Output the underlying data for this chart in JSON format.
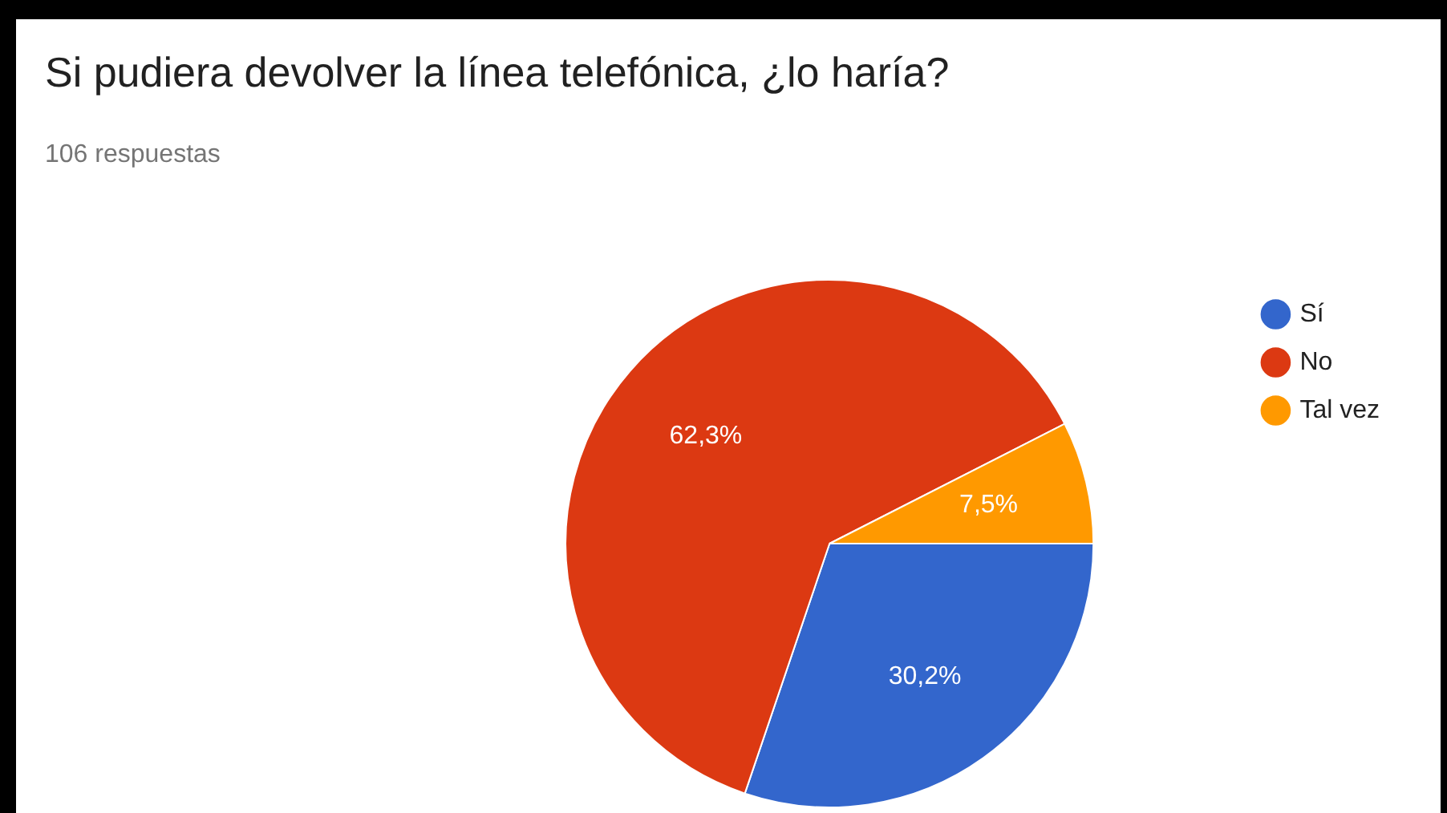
{
  "chart_data": {
    "type": "pie",
    "title": "Si pudiera devolver la línea telefónica, ¿lo haría?",
    "subtitle": "106 respuestas",
    "categories": [
      "Sí",
      "No",
      "Tal vez"
    ],
    "values": [
      30.2,
      62.3,
      7.5
    ],
    "colors": [
      "#3366cc",
      "#dc3912",
      "#ff9900"
    ],
    "value_labels": [
      "30,2%",
      "62,3%",
      "7,5%"
    ],
    "legend": "right"
  }
}
